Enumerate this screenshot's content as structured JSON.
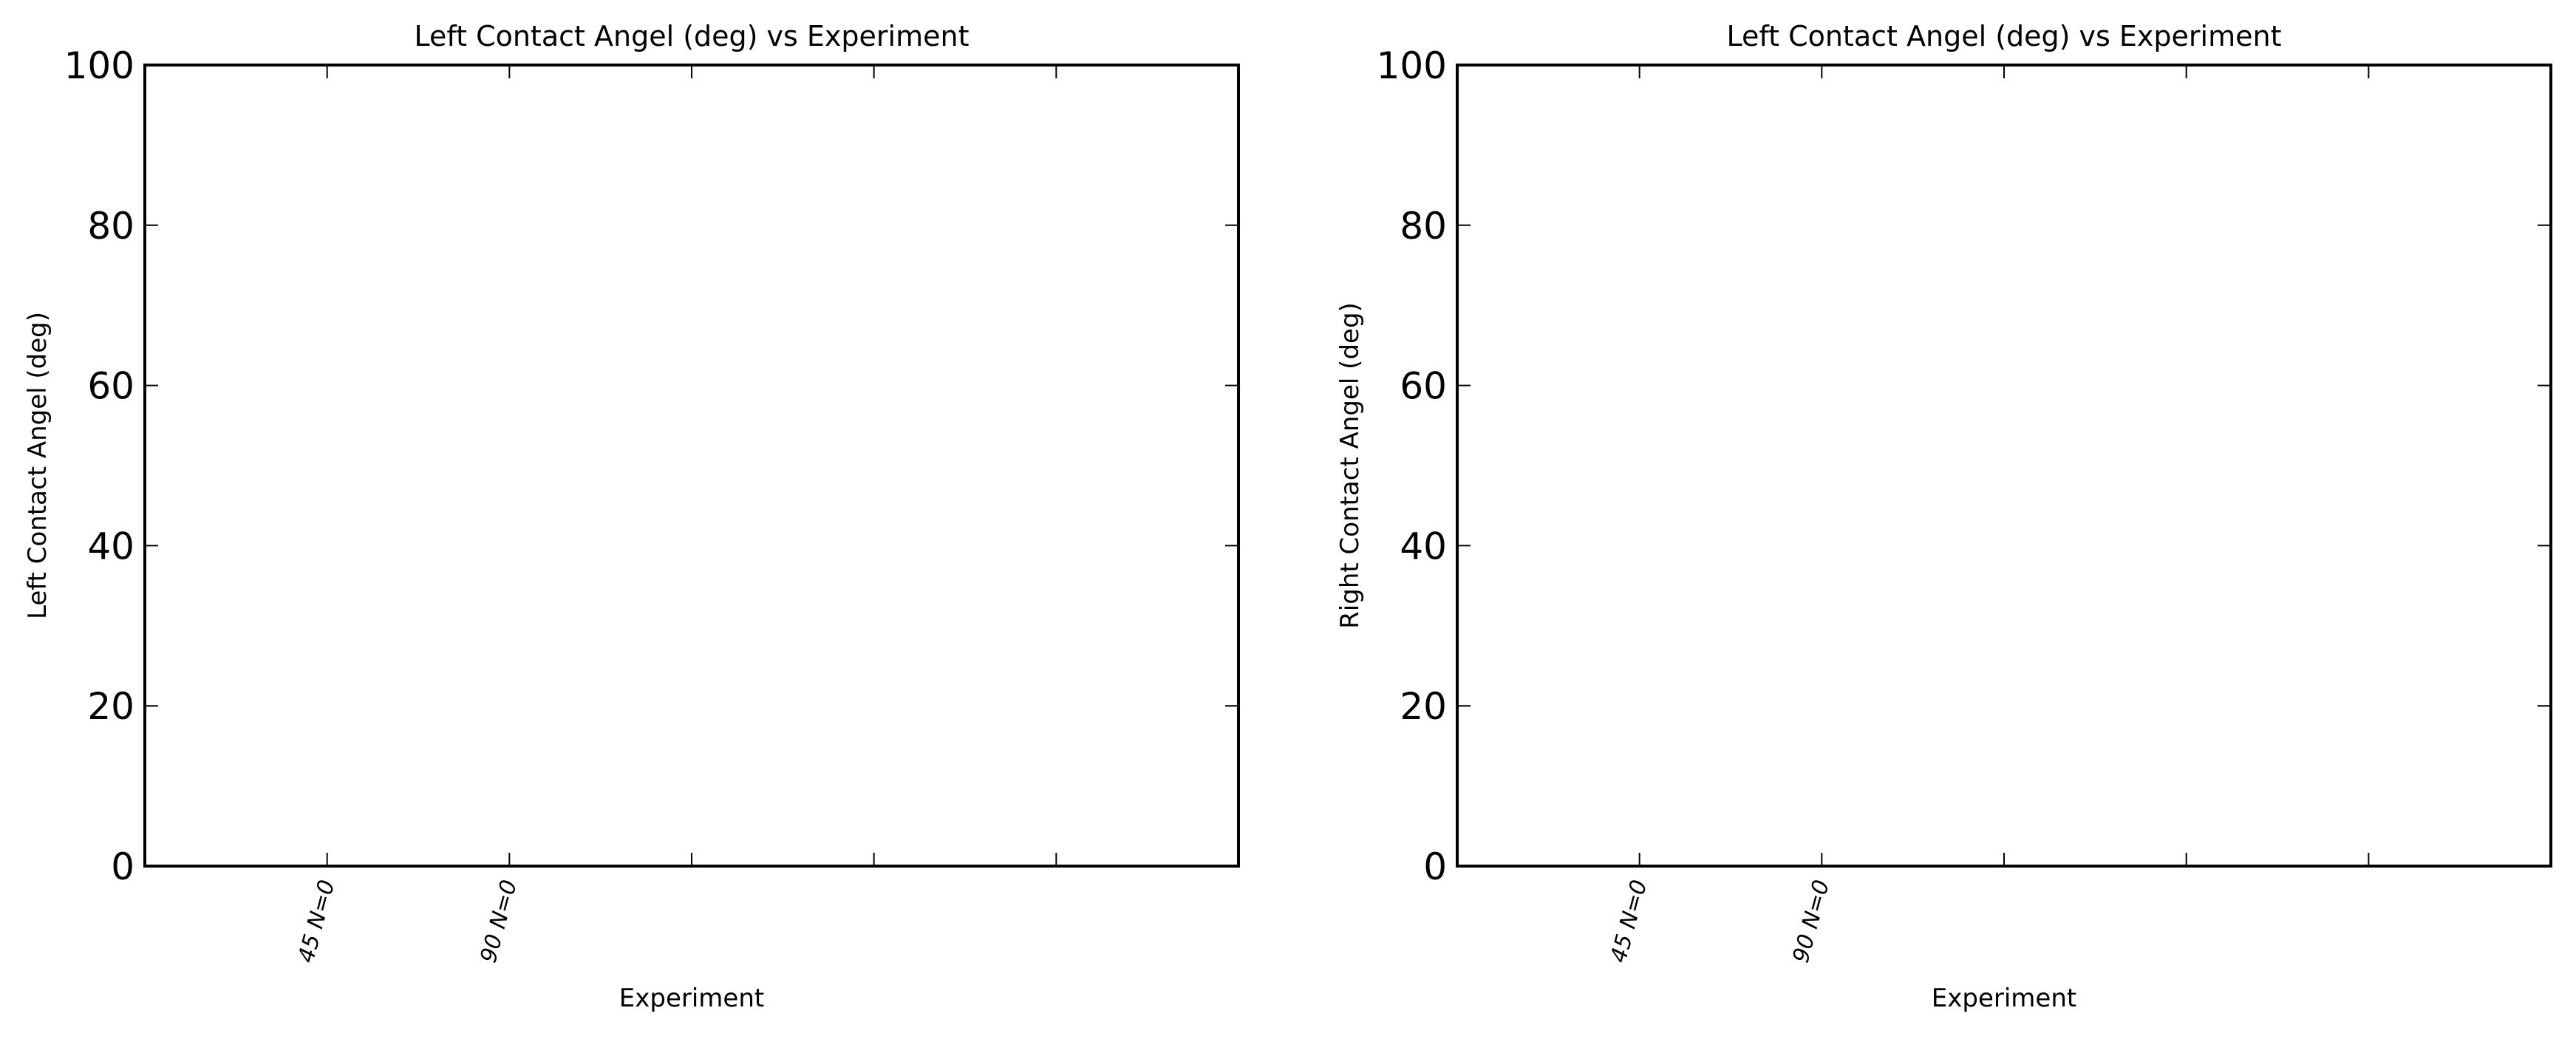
{
  "chart_data": [
    {
      "type": "bar",
      "title": "Left Contact Angel (deg) vs Experiment",
      "xlabel": "Experiment",
      "ylabel": "Left Contact Angel (deg)",
      "ylim": [
        0,
        100
      ],
      "yticks": [
        0,
        20,
        40,
        60,
        80,
        100
      ],
      "xlim": [
        0,
        6
      ],
      "xticks": [
        1,
        2,
        3,
        4,
        5
      ],
      "categories": [
        "45  N=0",
        "90  N=0"
      ],
      "values": [
        0,
        0
      ],
      "grid": false
    },
    {
      "type": "bar",
      "title": "Left Contact Angel (deg) vs Experiment",
      "xlabel": "Experiment",
      "ylabel": "Right Contact Angel (deg)",
      "ylim": [
        0,
        100
      ],
      "yticks": [
        0,
        20,
        40,
        60,
        80,
        100
      ],
      "xlim": [
        0,
        6
      ],
      "xticks": [
        1,
        2,
        3,
        4,
        5
      ],
      "categories": [
        "45  N=0",
        "90  N=0"
      ],
      "values": [
        0,
        0
      ],
      "grid": false
    }
  ]
}
